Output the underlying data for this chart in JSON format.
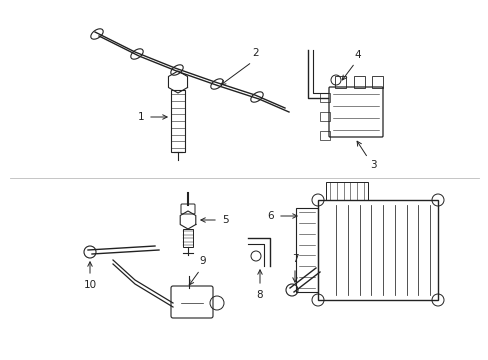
{
  "bg_color": "#ffffff",
  "line_color": "#222222",
  "label_color": "#000000",
  "figsize": [
    4.89,
    3.6
  ],
  "dpi": 100
}
